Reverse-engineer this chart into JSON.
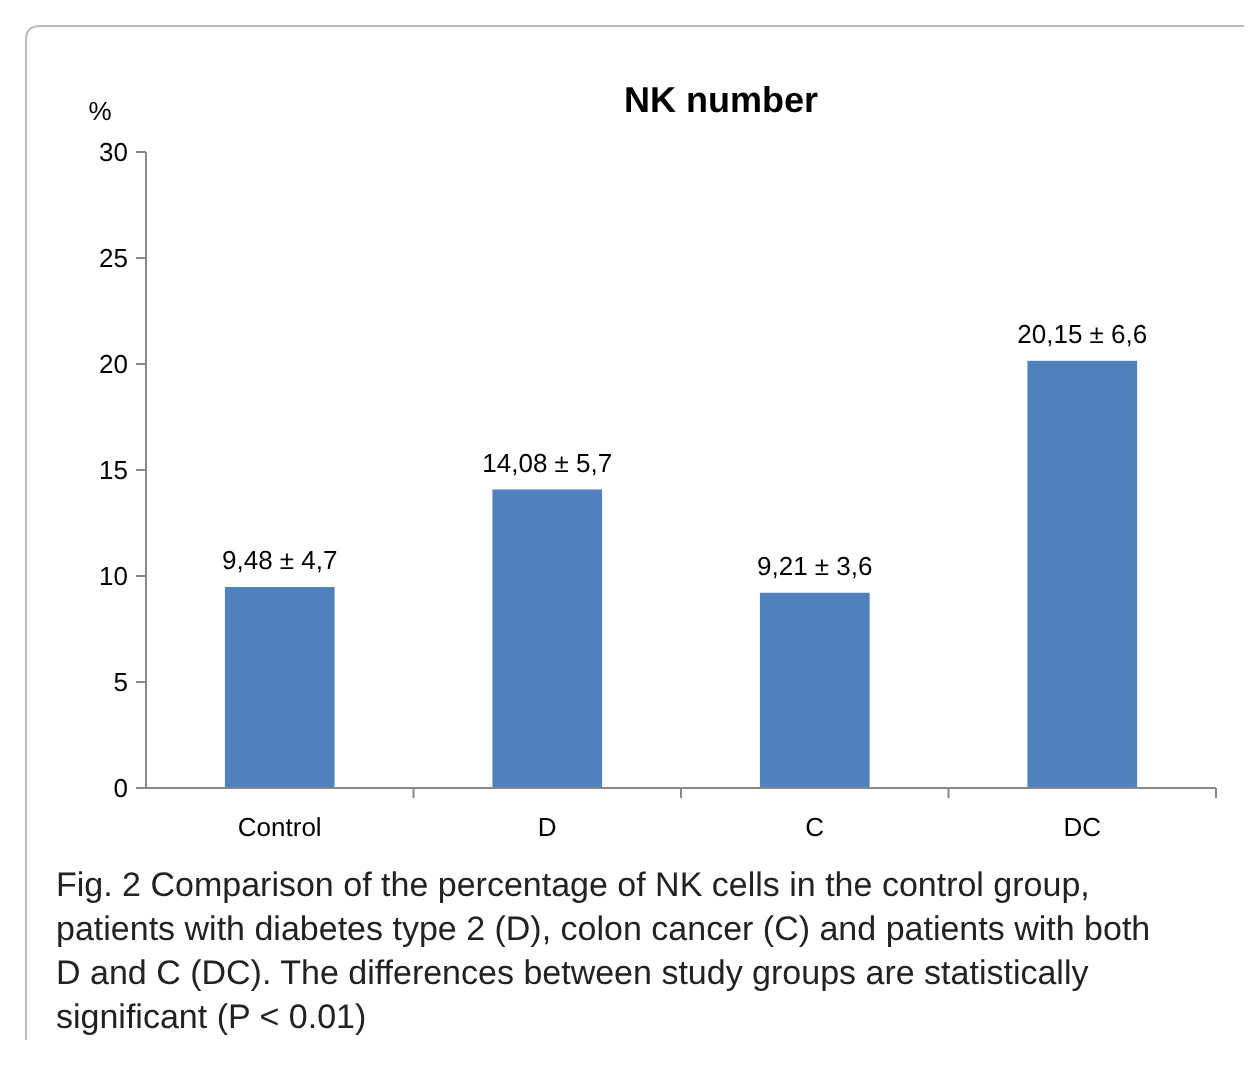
{
  "chart_data": {
    "type": "bar",
    "title": "NK number",
    "ylabel": "%",
    "categories": [
      "Control",
      "D",
      "C",
      "DC"
    ],
    "values": [
      9.48,
      14.08,
      9.21,
      20.15
    ],
    "value_labels": [
      "9,48 ± 4,7",
      "14,08 ± 5,7",
      "9,21 ± 3,6",
      "20,15 ± 6,6"
    ],
    "color": "#4f81bd",
    "ylim": [
      0,
      30
    ],
    "yticks": [
      0,
      5,
      10,
      15,
      20,
      25,
      30
    ],
    "grid": false,
    "annotations": [
      "Fig. 2  Comparison of the percentage of NK cells in the control group, patients with diabetes type 2 (D), colon cancer (C) and patients with both D and C (DC). The differences between study groups are statistically significant (P < 0.01)"
    ]
  }
}
